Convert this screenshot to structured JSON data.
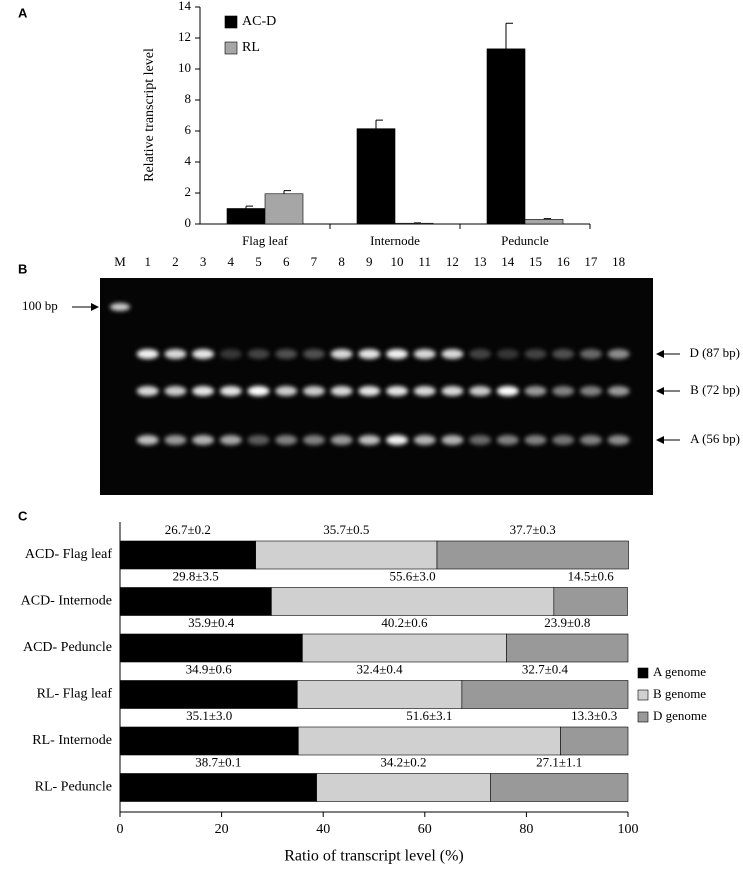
{
  "chart_data": [
    {
      "type": "bar",
      "label": "A",
      "ylabel": "Relative transcript level",
      "categories": [
        "Flag leaf",
        "Internode",
        "Peduncle"
      ],
      "series": [
        {
          "name": "AC-D",
          "color": "#000000",
          "values": [
            1.0,
            6.15,
            11.3
          ],
          "errors": [
            0.15,
            0.55,
            1.65
          ]
        },
        {
          "name": "RL",
          "color": "#a6a6a6",
          "values": [
            1.95,
            0.05,
            0.3
          ],
          "errors": [
            0.2,
            0.02,
            0.05
          ]
        }
      ],
      "ylim": [
        0,
        14
      ],
      "yticks": [
        0,
        2,
        4,
        6,
        8,
        10,
        12,
        14
      ]
    },
    {
      "type": "stacked_barh",
      "label": "C",
      "xlabel": "Ratio of transcript level (%)",
      "categories": [
        "ACD- Flag leaf",
        "ACD- Internode",
        "ACD- Peduncle",
        "RL- Flag leaf",
        "RL- Internode",
        "RL- Peduncle"
      ],
      "series": [
        {
          "name": "A genome",
          "color": "#000000",
          "values": [
            26.7,
            29.8,
            35.9,
            34.9,
            35.1,
            38.7
          ],
          "value_labels": [
            "26.7±0.2",
            "29.8±3.5",
            "35.9±0.4",
            "34.9±0.6",
            "35.1±3.0",
            "38.7±0.1"
          ]
        },
        {
          "name": "B genome",
          "color": "#d0d0d0",
          "values": [
            35.7,
            55.6,
            40.2,
            32.4,
            51.6,
            34.2
          ],
          "value_labels": [
            "35.7±0.5",
            "55.6±3.0",
            "40.2±0.6",
            "32.4±0.4",
            "51.6±3.1",
            "34.2±0.2"
          ]
        },
        {
          "name": "D genome",
          "color": "#999999",
          "values": [
            37.7,
            14.5,
            23.9,
            32.7,
            13.3,
            27.1
          ],
          "value_labels": [
            "37.7±0.3",
            "14.5±0.6",
            "23.9±0.8",
            "32.7±0.4",
            "13.3±0.3",
            "27.1±1.1"
          ]
        }
      ],
      "xlim": [
        0,
        100
      ],
      "xticks": [
        0,
        20,
        40,
        60,
        80,
        100
      ]
    }
  ],
  "gel": {
    "label": "B",
    "lanes": [
      "M",
      "1",
      "2",
      "3",
      "4",
      "5",
      "6",
      "7",
      "8",
      "9",
      "10",
      "11",
      "12",
      "13",
      "14",
      "15",
      "16",
      "17",
      "18"
    ],
    "marker": "100 bp",
    "bands": [
      "D (87 bp)",
      "B (72 bp)",
      "A (56 bp)"
    ]
  }
}
